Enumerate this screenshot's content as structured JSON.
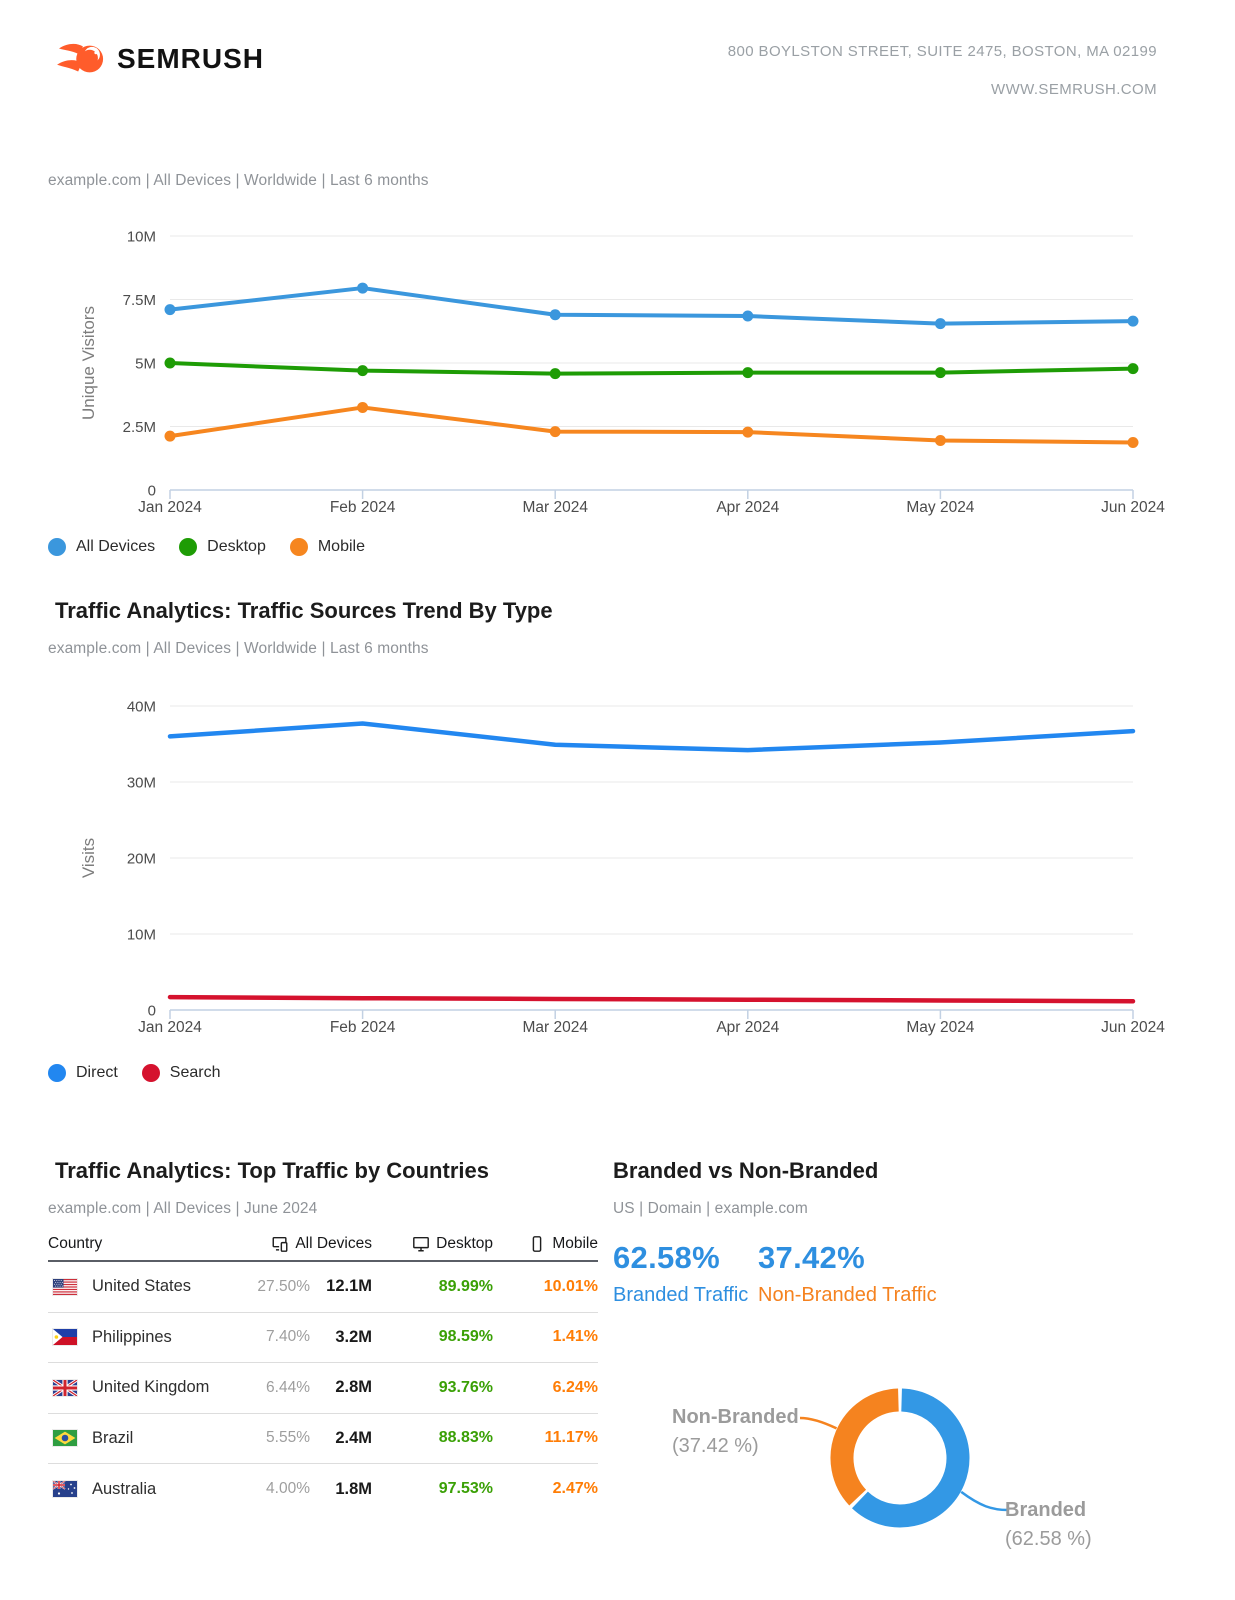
{
  "header": {
    "brand": "SEMRUSH",
    "address_line1": "800 BOYLSTON STREET, SUITE 2475, BOSTON, MA 02199",
    "address_line2": "WWW.SEMRUSH.COM"
  },
  "sections": {
    "unique_visitors": {
      "subtitle": "example.com | All Devices | Worldwide | Last 6 months"
    },
    "traffic_sources": {
      "title": "Traffic Analytics: Traffic Sources Trend By Type",
      "subtitle": "example.com | All Devices | Worldwide | Last 6 months"
    },
    "top_countries": {
      "title": "Traffic Analytics: Top Traffic by Countries",
      "subtitle": "example.com | All Devices | June 2024",
      "columns": {
        "country": "Country",
        "all_devices": "All Devices",
        "desktop": "Desktop",
        "mobile": "Mobile"
      },
      "rows": [
        {
          "country": "United States",
          "share": "27.50%",
          "visits": "12.1M",
          "desktop": "89.99%",
          "mobile": "10.01%"
        },
        {
          "country": "Philippines",
          "share": "7.40%",
          "visits": "3.2M",
          "desktop": "98.59%",
          "mobile": "1.41%"
        },
        {
          "country": "United Kingdom",
          "share": "6.44%",
          "visits": "2.8M",
          "desktop": "93.76%",
          "mobile": "6.24%"
        },
        {
          "country": "Brazil",
          "share": "5.55%",
          "visits": "2.4M",
          "desktop": "88.83%",
          "mobile": "11.17%"
        },
        {
          "country": "Australia",
          "share": "4.00%",
          "visits": "1.8M",
          "desktop": "97.53%",
          "mobile": "2.47%"
        }
      ]
    },
    "branded": {
      "title": "Branded vs Non-Branded",
      "subtitle": "US | Domain | example.com",
      "branded_pct": "62.58%",
      "branded_label": "Branded Traffic",
      "branded_color": "#2e8fe0",
      "nonbranded_pct": "37.42%",
      "nonbranded_label": "Non-Branded Traffic",
      "nonbranded_color": "#f5821f",
      "donut_label_nonbranded": "Non-Branded",
      "donut_value_nonbranded": "(37.42 %)",
      "donut_label_branded": "Branded",
      "donut_value_branded": "(62.58 %)"
    }
  },
  "chart_data": [
    {
      "type": "line",
      "ylabel": "Unique Visitors",
      "categories": [
        "Jan 2024",
        "Feb 2024",
        "Mar 2024",
        "Apr 2024",
        "May 2024",
        "Jun 2024"
      ],
      "ylim": [
        0,
        10000000
      ],
      "yticks": [
        {
          "v": 0,
          "label": "0"
        },
        {
          "v": 2500000,
          "label": "2.5M"
        },
        {
          "v": 5000000,
          "label": "5M"
        },
        {
          "v": 7500000,
          "label": "7.5M"
        },
        {
          "v": 10000000,
          "label": "10M"
        }
      ],
      "grid": true,
      "legend_position": "bottom",
      "markers": true,
      "series": [
        {
          "name": "All Devices",
          "color": "#3b97dd",
          "values": [
            7100000,
            7950000,
            6900000,
            6850000,
            6550000,
            6650000
          ]
        },
        {
          "name": "Desktop",
          "color": "#1e9c05",
          "values": [
            5000000,
            4700000,
            4580000,
            4620000,
            4620000,
            4780000
          ]
        },
        {
          "name": "Mobile",
          "color": "#f6861f",
          "values": [
            2120000,
            3250000,
            2300000,
            2280000,
            1950000,
            1870000
          ]
        }
      ]
    },
    {
      "type": "line",
      "ylabel": "Visits",
      "categories": [
        "Jan 2024",
        "Feb 2024",
        "Mar 2024",
        "Apr 2024",
        "May 2024",
        "Jun 2024"
      ],
      "ylim": [
        0,
        40000000
      ],
      "yticks": [
        {
          "v": 0,
          "label": "0"
        },
        {
          "v": 10000000,
          "label": "10M"
        },
        {
          "v": 20000000,
          "label": "20M"
        },
        {
          "v": 30000000,
          "label": "30M"
        },
        {
          "v": 40000000,
          "label": "40M"
        }
      ],
      "grid": true,
      "legend_position": "bottom",
      "markers": false,
      "series": [
        {
          "name": "Direct",
          "color": "#2287f0",
          "values": [
            36000000,
            37700000,
            34900000,
            34200000,
            35200000,
            36700000
          ]
        },
        {
          "name": "Search",
          "color": "#d5122e",
          "values": [
            1700000,
            1550000,
            1450000,
            1350000,
            1250000,
            1150000
          ]
        }
      ]
    },
    {
      "type": "pie",
      "title": "Branded vs Non-Branded",
      "donut": true,
      "slices": [
        {
          "label": "Branded",
          "value": 62.58,
          "color": "#3398e5"
        },
        {
          "label": "Non-Branded",
          "value": 37.42,
          "color": "#f5831f"
        }
      ]
    }
  ]
}
